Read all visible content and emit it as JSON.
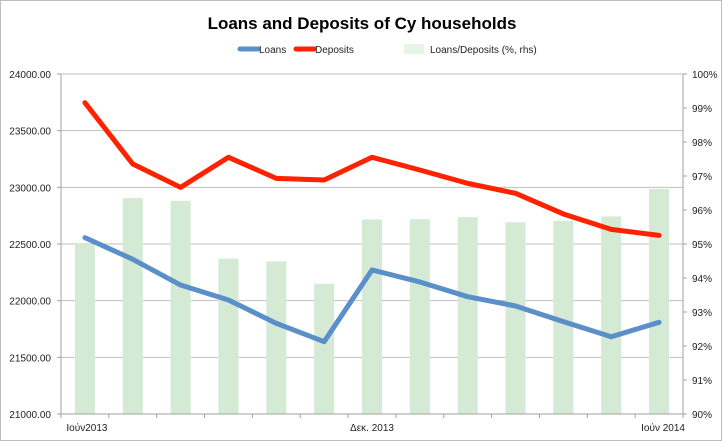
{
  "chart_data": {
    "type": "bar+line",
    "title": "Loans and Deposits of Cy households",
    "categories": [
      "Ιούν2013",
      "",
      "",
      "",
      "",
      "",
      "Δεκ. 2013",
      "",
      "",
      "",
      "",
      "",
      "Ιούν 2014"
    ],
    "series": [
      {
        "name": "Loans",
        "type": "line",
        "axis": "left",
        "color": "#5b8fc9",
        "values": [
          22556,
          22365,
          22138,
          22006,
          21800,
          21638,
          22271,
          22165,
          22035,
          21953,
          21815,
          21682,
          21809
        ]
      },
      {
        "name": "Deposits",
        "type": "line",
        "axis": "left",
        "color": "#ff2200",
        "values": [
          23747,
          23206,
          23000,
          23265,
          23079,
          23065,
          23265,
          23153,
          23035,
          22947,
          22765,
          22629,
          22576
        ]
      },
      {
        "name": "Loans/Deposits (%, rhs)",
        "type": "bar",
        "axis": "right",
        "color": "#d5ead5",
        "values": [
          95.0,
          96.35,
          96.27,
          94.57,
          94.49,
          93.83,
          95.72,
          95.73,
          95.79,
          95.64,
          95.68,
          95.81,
          96.62
        ]
      }
    ],
    "left_axis": {
      "ylim": [
        21000,
        24000
      ],
      "ticks": [
        "21000.00",
        "21500.00",
        "22000.00",
        "22500.00",
        "23000.00",
        "23500.00",
        "24000.00"
      ]
    },
    "right_axis": {
      "ylim": [
        90,
        100
      ],
      "ticks": [
        "90%",
        "91%",
        "92%",
        "93%",
        "94%",
        "95%",
        "96%",
        "97%",
        "98%",
        "99%",
        "100%"
      ]
    },
    "grid": "horizontal, left axis",
    "legend": "top-center"
  }
}
